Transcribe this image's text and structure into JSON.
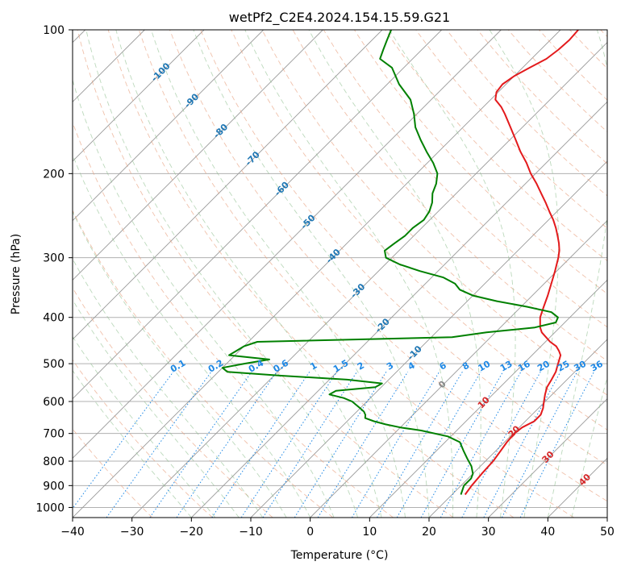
{
  "chart_data": {
    "type": "line",
    "title": "wetPf2_C2E4.2024.154.15.59.G21",
    "xlabel": "Temperature (°C)",
    "ylabel": "Pressure (hPa)",
    "xlim": [
      -40,
      50
    ],
    "ylim": [
      1050,
      100
    ],
    "y_scale": "log",
    "skew": "skew-T log-P diagram",
    "x_ticks": [
      -40,
      -30,
      -20,
      -10,
      0,
      10,
      20,
      30,
      40,
      50
    ],
    "y_ticks": [
      100,
      200,
      300,
      400,
      500,
      600,
      700,
      800,
      900,
      1000
    ],
    "grid": true,
    "series": [
      {
        "color": "#e31a1c",
        "role": "temperature",
        "p": [
          940,
          900,
          850,
          800,
          760,
          730,
          700,
          680,
          660,
          640,
          620,
          600,
          580,
          560,
          540,
          520,
          500,
          480,
          470,
          460,
          450,
          440,
          430,
          420,
          400,
          380,
          360,
          340,
          320,
          300,
          290,
          280,
          270,
          260,
          250,
          240,
          230,
          220,
          210,
          200,
          190,
          180,
          170,
          160,
          150,
          145,
          140,
          135,
          130,
          125,
          120,
          115,
          110,
          105,
          100
        ],
        "t": [
          22.2,
          21.8,
          21.5,
          21.3,
          20.8,
          20.4,
          20.2,
          20.5,
          21.5,
          21.5,
          20.8,
          19.8,
          18.8,
          17.9,
          17.4,
          16.8,
          15.8,
          14.8,
          13.8,
          12.6,
          10.8,
          9.3,
          7.8,
          6.7,
          5.0,
          3.8,
          2.6,
          1.2,
          -0.3,
          -2.0,
          -3.0,
          -4.3,
          -5.8,
          -7.4,
          -9.2,
          -11.3,
          -13.4,
          -15.7,
          -18.1,
          -20.8,
          -23.3,
          -26.2,
          -29.0,
          -32.0,
          -35.2,
          -37.0,
          -39.2,
          -40.3,
          -40.6,
          -40.0,
          -38.8,
          -37.5,
          -37.0,
          -36.8,
          -37.0
        ]
      },
      {
        "color": "#008000",
        "role": "dewpoint",
        "p": [
          940,
          900,
          870,
          850,
          820,
          790,
          760,
          730,
          710,
          690,
          680,
          670,
          660,
          650,
          640,
          630,
          620,
          600,
          590,
          580,
          570,
          560,
          550,
          540,
          530,
          520,
          510,
          500,
          490,
          480,
          460,
          450,
          440,
          430,
          420,
          410,
          400,
          390,
          380,
          370,
          360,
          350,
          340,
          330,
          320,
          310,
          300,
          290,
          280,
          270,
          260,
          250,
          240,
          230,
          220,
          210,
          200,
          190,
          180,
          170,
          160,
          150,
          140,
          130,
          120,
          115,
          110,
          105,
          100
        ],
        "t": [
          21.5,
          20.5,
          20.5,
          20.0,
          18.5,
          16.5,
          14.5,
          12.5,
          9.5,
          4.0,
          0.0,
          -3.0,
          -5.5,
          -7.5,
          -8.0,
          -8.8,
          -10.0,
          -12.5,
          -14.5,
          -17.5,
          -17.0,
          -11.0,
          -10.5,
          -17.0,
          -28.5,
          -38.5,
          -40.0,
          -37.0,
          -33.5,
          -41.0,
          -40.0,
          -38.5,
          -6.5,
          -1.5,
          5.8,
          8.5,
          8.0,
          6.0,
          1.0,
          -5.0,
          -10.0,
          -13.2,
          -15.0,
          -18.0,
          -23.0,
          -27.5,
          -31.0,
          -32.4,
          -32.0,
          -31.5,
          -31.5,
          -31.0,
          -31.5,
          -32.5,
          -34.0,
          -35.0,
          -36.5,
          -39.0,
          -42.0,
          -45.0,
          -48.0,
          -50.5,
          -53.5,
          -58.0,
          -62.0,
          -65.5,
          -66.5,
          -67.5,
          -68.5
        ]
      }
    ],
    "dry_adiabat_labels": [
      "-100",
      "-90",
      "-80",
      "-70",
      "-60",
      "-50",
      "-40",
      "-30",
      "-20",
      "-10",
      "0"
    ],
    "moist_adiabat_labels": [
      "10",
      "20",
      "30",
      "40"
    ],
    "mixing_ratio_labels": [
      "0.1",
      "0.2",
      "0.4",
      "0.6",
      "1",
      "1.5",
      "2",
      "3",
      "4",
      "6",
      "8",
      "10",
      "13",
      "16",
      "20",
      "25",
      "30",
      "36"
    ],
    "colors": {
      "temperature": "#e31a1c",
      "dewpoint": "#008000",
      "dry_adiabat": "#e8a07e",
      "moist_adiabat": "#8fbf8f",
      "mixing_ratio": "#1e88e5",
      "isotherm": "#999999"
    }
  }
}
